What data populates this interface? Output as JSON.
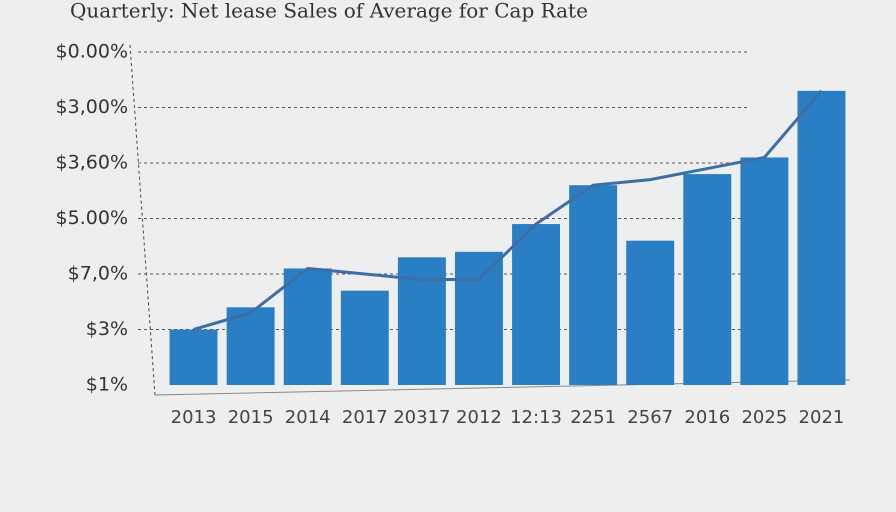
{
  "chart_data": {
    "type": "bar",
    "title": "Quarterly: Net lease Sales of Average for Cap Rate",
    "categories": [
      "2013",
      "2015",
      "2014",
      "2017",
      "20317",
      "2012",
      "12:13",
      "2251",
      "2567",
      "2016",
      "2025",
      "2021"
    ],
    "series": [
      {
        "type": "bar",
        "color": "#2a7fc4",
        "values": [
          1.0,
          1.4,
          2.1,
          1.7,
          2.3,
          2.4,
          2.9,
          3.6,
          2.6,
          3.8,
          4.1,
          5.3
        ]
      },
      {
        "type": "line",
        "color": "#3d6ea6",
        "values": [
          1.0,
          1.3,
          2.1,
          2.0,
          1.9,
          1.9,
          2.9,
          3.6,
          3.7,
          3.9,
          4.1,
          5.3
        ]
      }
    ],
    "ylim": [
      0,
      6
    ],
    "yticks": [
      {
        "value": 0,
        "label": "$1%"
      },
      {
        "value": 1,
        "label": "$3%"
      },
      {
        "value": 2,
        "label": "$7,0%"
      },
      {
        "value": 3,
        "label": "$5.00%"
      },
      {
        "value": 4,
        "label": "$3,60%"
      },
      {
        "value": 5,
        "label": "$3,00%"
      },
      {
        "value": 6,
        "label": "$0.00%"
      }
    ],
    "grid": true
  }
}
